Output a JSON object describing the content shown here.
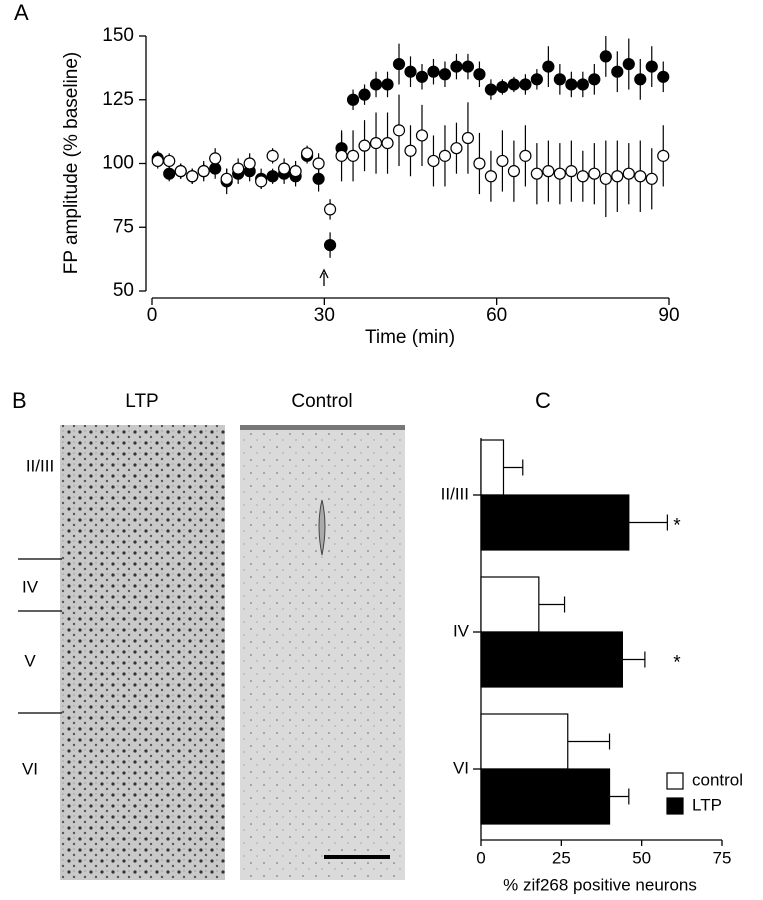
{
  "chart_data": [
    {
      "type": "scatter",
      "panel_label": "A",
      "x_label": "Time (min)",
      "y_label": "FP amplitude (% baseline)",
      "x": [
        1,
        3,
        5,
        7,
        9,
        11,
        13,
        15,
        17,
        19,
        21,
        23,
        25,
        27,
        29,
        31,
        33,
        35,
        37,
        39,
        41,
        43,
        45,
        47,
        49,
        51,
        53,
        55,
        57,
        59,
        61,
        63,
        65,
        67,
        69,
        71,
        73,
        75,
        77,
        79,
        81,
        83,
        85,
        87,
        89
      ],
      "series": [
        {
          "color": "#000000",
          "values": [
            102,
            96,
            97,
            95,
            97,
            98,
            93,
            96,
            97,
            94,
            95,
            96,
            95,
            103,
            94,
            68,
            106,
            125,
            127,
            131,
            131,
            139,
            136,
            134,
            136,
            135,
            138,
            138,
            135,
            129,
            130,
            131,
            131,
            133,
            138,
            133,
            131,
            131,
            133,
            142,
            136,
            139,
            133,
            138,
            134
          ],
          "errors": [
            3,
            3,
            3,
            3,
            4,
            4,
            5,
            4,
            4,
            4,
            3,
            4,
            4,
            3,
            5,
            5,
            6,
            4,
            4,
            5,
            5,
            8,
            6,
            5,
            5,
            5,
            5,
            5,
            5,
            4,
            3,
            3,
            4,
            4,
            8,
            6,
            5,
            5,
            6,
            8,
            8,
            10,
            8,
            8,
            6
          ]
        },
        {
          "color": "#ffffff",
          "values": [
            101,
            101,
            97,
            95,
            97,
            102,
            94,
            98,
            100,
            93,
            103,
            98,
            97,
            104,
            100,
            82,
            103,
            103,
            107,
            108,
            108,
            113,
            105,
            111,
            101,
            103,
            106,
            110,
            100,
            95,
            101,
            97,
            103,
            96,
            97,
            96,
            97,
            95,
            96,
            94,
            95,
            96,
            95,
            94,
            103
          ],
          "errors": [
            3,
            3,
            3,
            3,
            3,
            4,
            4,
            4,
            4,
            3,
            3,
            4,
            4,
            3,
            4,
            4,
            10,
            10,
            10,
            12,
            12,
            14,
            10,
            12,
            10,
            12,
            10,
            14,
            12,
            10,
            12,
            12,
            12,
            12,
            12,
            12,
            12,
            10,
            12,
            15,
            14,
            12,
            14,
            12,
            12
          ]
        }
      ],
      "xlim": [
        0,
        90
      ],
      "xticks": [
        0,
        30,
        60,
        90
      ],
      "ylim": [
        50,
        150
      ],
      "yticks": [
        50,
        75,
        100,
        125,
        150
      ]
    },
    {
      "type": "hbar",
      "panel_label": "C",
      "x_label": "% zif268 positive neurons",
      "categories": [
        "II/III",
        "IV",
        "VI"
      ],
      "series": [
        {
          "name": "control",
          "color": "#ffffff",
          "values": [
            7,
            18,
            27
          ],
          "errors": [
            6,
            8,
            13
          ]
        },
        {
          "name": "LTP",
          "color": "#000000",
          "values": [
            46,
            44,
            40
          ],
          "errors": [
            12,
            7,
            6
          ],
          "significance": [
            "*",
            "*",
            null
          ]
        }
      ],
      "xlim": [
        0,
        75
      ],
      "xticks": [
        0,
        25,
        50,
        75
      ]
    }
  ],
  "image_panel": {
    "panel_label": "B",
    "columns": [
      "LTP",
      "Control"
    ],
    "layers": [
      "II/III",
      "IV",
      "V",
      "VI"
    ]
  }
}
